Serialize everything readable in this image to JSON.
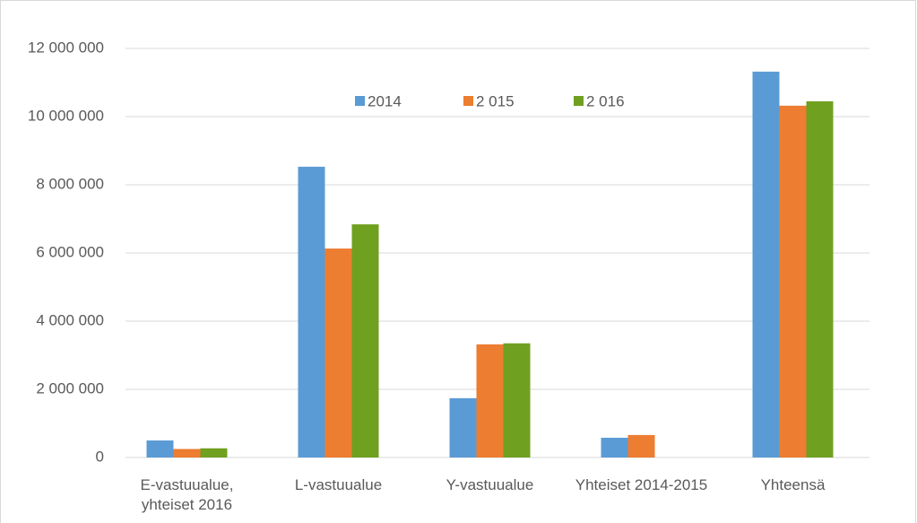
{
  "chart_data": {
    "type": "bar",
    "categories": [
      "E-vastuualue, yhteiset 2016",
      "L-vastuualue",
      "Y-vastuualue",
      "Yhteiset 2014-2015",
      "Yhteensä"
    ],
    "series": [
      {
        "name": "2014",
        "color": "#5b9bd5",
        "values": [
          500000,
          8530000,
          1740000,
          580000,
          11320000
        ]
      },
      {
        "name": "2 015",
        "color": "#ed7d31",
        "values": [
          250000,
          6130000,
          3320000,
          660000,
          10320000
        ]
      },
      {
        "name": "2 016",
        "color": "#70a020",
        "values": [
          270000,
          6840000,
          3350000,
          0,
          10450000
        ]
      }
    ],
    "ylim": [
      0,
      12000000
    ],
    "yticks": [
      {
        "value": 0,
        "label": "0"
      },
      {
        "value": 2000000,
        "label": "2 000 000"
      },
      {
        "value": 4000000,
        "label": "4 000 000"
      },
      {
        "value": 6000000,
        "label": "6 000 000"
      },
      {
        "value": 8000000,
        "label": "8 000 000"
      },
      {
        "value": 10000000,
        "label": "10 000 000"
      },
      {
        "value": 12000000,
        "label": "12 000 000"
      }
    ],
    "grid": true,
    "legend": "top"
  }
}
